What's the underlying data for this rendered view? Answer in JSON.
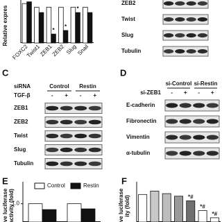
{
  "chart_data": [
    {
      "type": "bar",
      "y_label_lines": [
        "Relative expres"
      ],
      "categories": [
        "FOXC2",
        "Twist1",
        "ZEB1",
        "ZEB2",
        "Slug",
        "Snail"
      ],
      "series": [
        {
          "color": "#ffffff",
          "values": [
            1.1,
            1.0,
            1.0,
            1.0,
            1.0,
            1.0
          ]
        },
        {
          "color": "#111111",
          "values": [
            1.15,
            0.85,
            0.25,
            0.35,
            0.85,
            0.85
          ],
          "significance": [
            null,
            null,
            "*",
            "*",
            "*",
            null
          ]
        }
      ],
      "ylim": [
        0,
        1.2
      ]
    },
    {
      "type": "bar",
      "panel": "E",
      "y_label_lines": [
        "ive luciferase",
        "activity (fold)"
      ],
      "categories": [
        null,
        null
      ],
      "series": [
        {
          "name": "Control",
          "color": "#ffffff",
          "values": [
            1.0,
            1.0
          ]
        },
        {
          "name": "Restin",
          "color": "#111111",
          "values": [
            0.92,
            0.93
          ]
        }
      ],
      "ylim": [
        0.75,
        1.3
      ],
      "yticks": [
        {
          "value": 1,
          "label": "1.0"
        }
      ]
    },
    {
      "type": "bar",
      "panel": "F",
      "y_label_lines": [
        "ive luciferase",
        "ity (fold)"
      ],
      "categories": [
        null,
        null,
        null,
        null,
        null,
        null,
        null
      ],
      "series": [
        {
          "colors": [
            "#ffffff",
            "#c8c8c8",
            "#bdbdbd",
            "#9a9a9a",
            "#707070",
            "#ffffff",
            "#ffffff"
          ],
          "values": [
            1.0,
            1.08,
            1.02,
            0.96,
            0.85,
            0.62,
            0.45
          ],
          "significance": [
            null,
            null,
            null,
            null,
            "*#",
            "*#",
            "*#"
          ]
        }
      ],
      "ylim": [
        0.35,
        1.3
      ]
    }
  ],
  "blots": [
    {
      "rows": [
        "ZEB2",
        "Twist",
        "Slug",
        "Tubulin"
      ]
    },
    {
      "panel": "C",
      "factor": "siRNA",
      "groups": [
        "Control",
        "Restin"
      ],
      "treatment": "TGF-β",
      "signs": [
        "-",
        "+",
        "-",
        "+"
      ],
      "rows": [
        "ZEB1",
        "ZEB2",
        "Twist",
        "Slug",
        "Tubulin"
      ]
    },
    {
      "panel": "D",
      "groups": [
        "si-Control",
        "si-Restin"
      ],
      "treatment": "si-ZEB1",
      "signs": [
        "-",
        "+",
        "-",
        "+"
      ],
      "rows": [
        "E-cadherin",
        "Fibronectin",
        "Vimentin",
        "α-tubulin"
      ]
    }
  ]
}
